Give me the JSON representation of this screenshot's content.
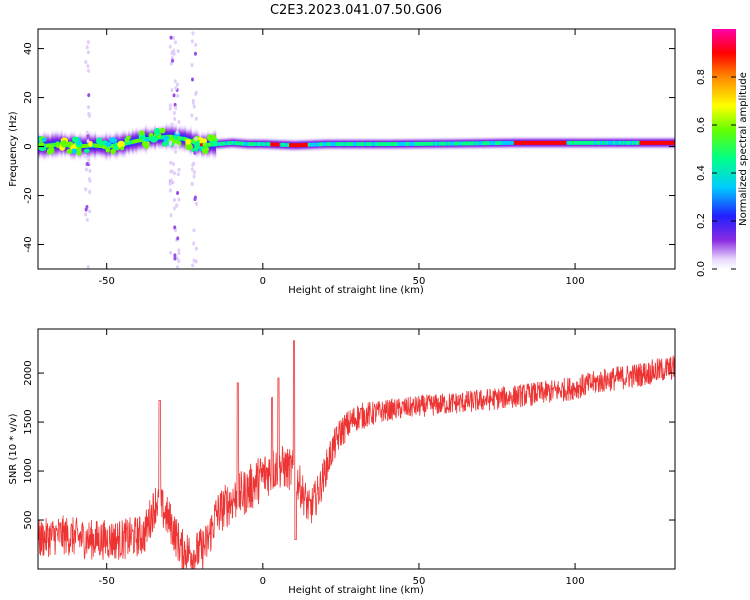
{
  "title": "C2E3.2023.041.07.50.G06",
  "colors": {
    "snr_line": "#ee3333",
    "spectrum_background": "#ffffff",
    "colormap": [
      "#ffffff",
      "#dcc6f7",
      "#8a2be2",
      "#2020ff",
      "#00ccff",
      "#00ff88",
      "#66ff00",
      "#ffff00",
      "#ff8800",
      "#ff0000",
      "#ff00aa"
    ]
  },
  "chart_data": [
    {
      "type": "heatmap",
      "title": "",
      "xlabel": "Height of straight line (km)",
      "ylabel": "Frequency (Hz)",
      "xlim": [
        -72,
        132
      ],
      "ylim": [
        -50,
        48
      ],
      "x_ticks": [
        "-50",
        "0",
        "50",
        "100"
      ],
      "y_ticks": [
        "40",
        "20",
        "0",
        "-20",
        "-40"
      ],
      "colorbar": {
        "label": "Normalized spectral amplitude",
        "range": [
          0,
          1
        ],
        "ticks": [
          "0.0",
          "0.2",
          "0.4",
          "0.6",
          "0.8"
        ]
      },
      "ridge_center_hz": {
        "x": [
          -72,
          -65,
          -60,
          -55,
          -50,
          -45,
          -40,
          -35,
          -30,
          -25,
          -20,
          -15,
          -10,
          -5,
          0,
          10,
          20,
          40,
          60,
          80,
          100,
          120,
          132
        ],
        "y": [
          0,
          1,
          0,
          0.5,
          0,
          1,
          2.5,
          3.5,
          4,
          3,
          0.5,
          1,
          1.5,
          1,
          1,
          0.5,
          1,
          1,
          1.2,
          1.5,
          1.5,
          1.5,
          1.5
        ]
      },
      "peak_amplitude_regions_km": [
        [
          80,
          97
        ],
        [
          -22,
          -18
        ],
        [
          2,
          5
        ],
        [
          8,
          14
        ],
        [
          120,
          132
        ]
      ]
    },
    {
      "type": "line",
      "title": "",
      "xlabel": "Height of straight line (km)",
      "ylabel": "SNR (10 * v/v)",
      "xlim": [
        -72,
        132
      ],
      "ylim": [
        0,
        2450
      ],
      "x_ticks": [
        "-50",
        "0",
        "50",
        "100"
      ],
      "y_ticks": [
        "500",
        "1000",
        "1500",
        "2000"
      ],
      "series": [
        {
          "values_trend": {
            "x": [
              -72,
              -65,
              -55,
              -45,
              -38,
              -34,
              -30,
              -26,
              -22,
              -18,
              -15,
              -10,
              -5,
              0,
              5,
              10,
              15,
              18,
              22,
              25,
              30,
              40,
              50,
              60,
              70,
              80,
              90,
              100,
              110,
              120,
              132
            ],
            "y": [
              300,
              350,
              300,
              300,
              350,
              700,
              500,
              200,
              150,
              250,
              550,
              700,
              800,
              950,
              1050,
              1000,
              600,
              800,
              1200,
              1400,
              1550,
              1620,
              1660,
              1690,
              1720,
              1760,
              1800,
              1850,
              1930,
              1980,
              2060
            ]
          },
          "noise_amplitude": {
            "x": [
              -72,
              -20,
              0,
              20,
              40,
              132
            ],
            "y": [
              200,
              220,
              250,
              180,
              110,
              130
            ]
          },
          "spikes": [
            {
              "x": -33,
              "y": 1720
            },
            {
              "x": -8,
              "y": 1900
            },
            {
              "x": 3,
              "y": 1750
            },
            {
              "x": 5,
              "y": 1950
            },
            {
              "x": 10,
              "y": 2330
            },
            {
              "x": 10.5,
              "y": 300
            }
          ]
        }
      ]
    }
  ]
}
